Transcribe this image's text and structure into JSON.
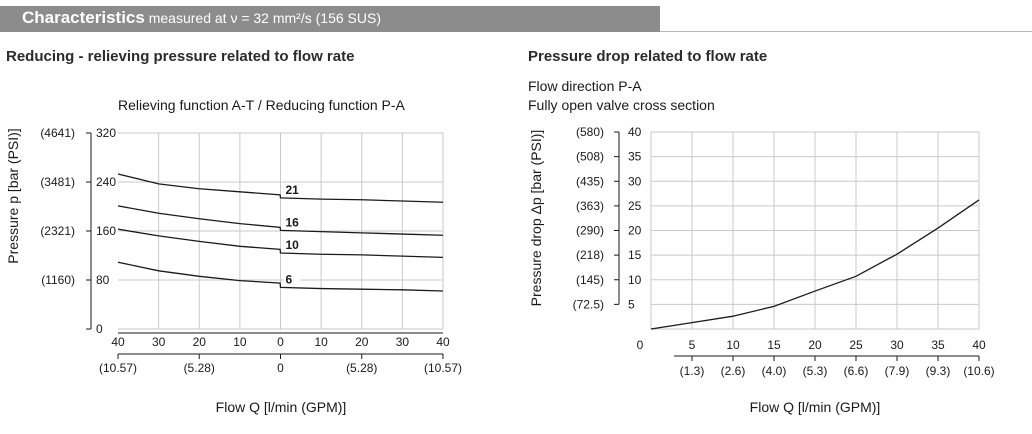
{
  "header": {
    "title": "Characteristics",
    "subtitle": "measured at ν = 32 mm²/s (156 SUS)"
  },
  "chart_data": [
    {
      "type": "line",
      "title": "Reducing - relieving pressure related to flow rate",
      "subtitle": "Relieving function A-T  /  Reducing function P-A",
      "xlabel": "Flow Q [l/min (GPM)]",
      "ylabel": "Pressure p [bar (PSI)]",
      "xlim": [
        -40,
        40
      ],
      "ylim": [
        0,
        320
      ],
      "x_ticks": [
        -40,
        -30,
        -20,
        -10,
        0,
        10,
        20,
        30,
        40
      ],
      "x_tick_labels": [
        "40",
        "30",
        "20",
        "10",
        "0",
        "10",
        "20",
        "30",
        "40"
      ],
      "x_secondary_labels": [
        {
          "x": -40,
          "label": "(10.57)"
        },
        {
          "x": -20,
          "label": "(5.28)"
        },
        {
          "x": 0,
          "label": "0"
        },
        {
          "x": 20,
          "label": "(5.28)"
        },
        {
          "x": 40,
          "label": "(10.57)"
        }
      ],
      "y_ticks": [
        0,
        80,
        160,
        240,
        320
      ],
      "y_tick_labels": [
        "0",
        "80",
        "160",
        "240",
        "320"
      ],
      "y_psi_labels": [
        {
          "y": 80,
          "label": "(1160)"
        },
        {
          "y": 160,
          "label": "(2321)"
        },
        {
          "y": 240,
          "label": "(3481)"
        },
        {
          "y": 320,
          "label": "(4641)"
        }
      ],
      "grid": true,
      "series": [
        {
          "name": "21",
          "x": [
            -40,
            -30,
            -20,
            -10,
            -0.1,
            0,
            10,
            20,
            30,
            40
          ],
          "y": [
            253,
            237,
            229,
            224,
            219,
            214,
            212,
            211,
            209,
            207
          ]
        },
        {
          "name": "16",
          "x": [
            -40,
            -30,
            -20,
            -10,
            -0.1,
            0,
            10,
            20,
            30,
            40
          ],
          "y": [
            201,
            189,
            180,
            172,
            166,
            161,
            159,
            157,
            155,
            153
          ]
        },
        {
          "name": "10",
          "x": [
            -40,
            -30,
            -20,
            -10,
            -0.1,
            0,
            10,
            20,
            30,
            40
          ],
          "y": [
            163,
            152,
            143,
            135,
            130,
            124,
            122,
            121,
            119,
            117
          ]
        },
        {
          "name": "6",
          "x": [
            -40,
            -30,
            -20,
            -10,
            -0.1,
            0,
            10,
            20,
            30,
            40
          ],
          "y": [
            109,
            95,
            86,
            79,
            75,
            68,
            66,
            65,
            64,
            62
          ]
        }
      ]
    },
    {
      "type": "line",
      "title": "Pressure drop related to flow rate",
      "subtitle_lines": [
        "Flow direction P-A",
        "Fully open valve cross section"
      ],
      "xlabel": "Flow Q [l/min (GPM)]",
      "ylabel": "Pressure drop Δp [bar (PSI)]",
      "xlim": [
        0,
        40
      ],
      "ylim": [
        0,
        40
      ],
      "x_ticks": [
        0,
        5,
        10,
        15,
        20,
        25,
        30,
        35,
        40
      ],
      "x_tick_labels": [
        "0",
        "5",
        "10",
        "15",
        "20",
        "25",
        "30",
        "35",
        "40"
      ],
      "x_secondary_labels": [
        {
          "x": 5,
          "label": "(1.3)"
        },
        {
          "x": 10,
          "label": "(2.6)"
        },
        {
          "x": 15,
          "label": "(4.0)"
        },
        {
          "x": 20,
          "label": "(5.3)"
        },
        {
          "x": 25,
          "label": "(6.6)"
        },
        {
          "x": 30,
          "label": "(7.9)"
        },
        {
          "x": 35,
          "label": "(9.3)"
        },
        {
          "x": 40,
          "label": "(10.6)"
        }
      ],
      "y_ticks": [
        5,
        10,
        15,
        20,
        25,
        30,
        35,
        40
      ],
      "y_tick_labels": [
        "5",
        "10",
        "15",
        "20",
        "25",
        "30",
        "35",
        "40"
      ],
      "y_psi_labels": [
        {
          "y": 5,
          "label": "(72.5)"
        },
        {
          "y": 10,
          "label": "(145)"
        },
        {
          "y": 15,
          "label": "(218)"
        },
        {
          "y": 20,
          "label": "(290)"
        },
        {
          "y": 25,
          "label": "(363)"
        },
        {
          "y": 30,
          "label": "(435)"
        },
        {
          "y": 35,
          "label": "(508)"
        },
        {
          "y": 40,
          "label": "(580)"
        }
      ],
      "grid": true,
      "series": [
        {
          "name": "Δp",
          "x": [
            0,
            5,
            10,
            15,
            20,
            25,
            30,
            35,
            40
          ],
          "y": [
            0,
            1.3,
            2.6,
            4.6,
            7.7,
            10.7,
            15.2,
            20.5,
            26.2
          ]
        }
      ]
    }
  ]
}
